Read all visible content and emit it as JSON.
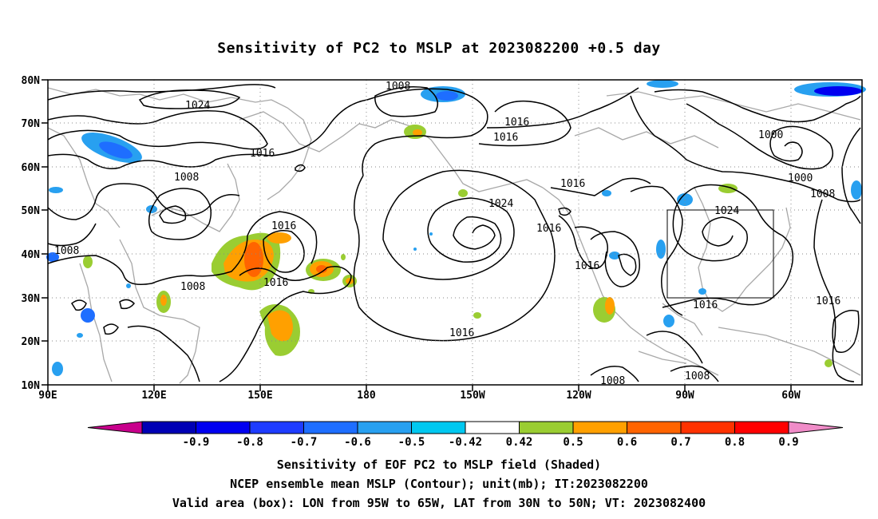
{
  "title": "Sensitivity of PC2 to MSLP at 2023082200 +0.5 day",
  "map": {
    "lon_ticks": [
      "90E",
      "120E",
      "150E",
      "180",
      "150W",
      "120W",
      "90W",
      "60W"
    ],
    "lat_ticks": [
      "80N",
      "70N",
      "60N",
      "50N",
      "40N",
      "30N",
      "20N",
      "10N"
    ],
    "contour_labels": [
      "1024",
      "1008",
      "1016",
      "1016",
      "1016",
      "1008",
      "1016",
      "1016",
      "1008",
      "1024",
      "1016",
      "1016",
      "1016",
      "1016",
      "1000",
      "1000",
      "1008",
      "1024",
      "1016",
      "1016",
      "1008",
      "1008"
    ],
    "valid_box": {
      "lon_west": "95W",
      "lon_east": "65W",
      "lat_south": "30N",
      "lat_north": "50N"
    }
  },
  "colorbar": {
    "colors": [
      "#c8008c",
      "#0000b4",
      "#0000f0",
      "#1e3cff",
      "#1e6eff",
      "#28a0f0",
      "#00c8f0",
      "#ffffff",
      "#9acd32",
      "#ffa000",
      "#ff6400",
      "#ff3200",
      "#ff0000",
      "#f08cc8"
    ],
    "labels": [
      "-0.9",
      "-0.8",
      "-0.7",
      "-0.6",
      "-0.5",
      "-0.42",
      "0.42",
      "0.5",
      "0.6",
      "0.7",
      "0.8",
      "0.9"
    ]
  },
  "captions": {
    "line1": "Sensitivity of EOF PC2 to MSLP field (Shaded)",
    "line2": "NCEP ensemble mean MSLP (Contour); unit(mb); IT:2023082200",
    "line3": "Valid area (box): LON from 95W to 65W, LAT from 30N to 50N; VT: 2023082400"
  }
}
